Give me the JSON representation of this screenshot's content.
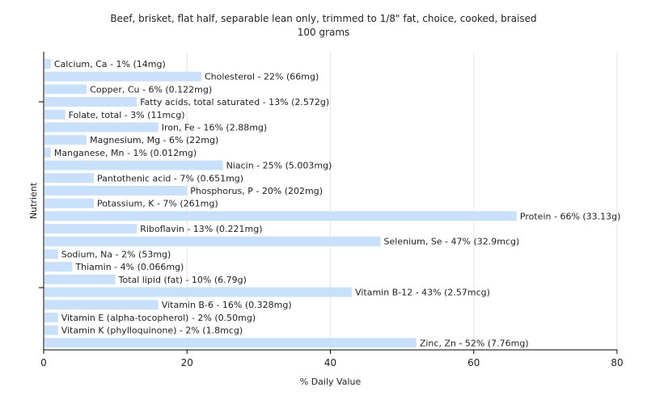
{
  "chart_data": {
    "type": "bar",
    "orientation": "horizontal",
    "title": "Beef, brisket, flat half, separable lean only, trimmed to 1/8\" fat, choice, cooked, braised",
    "subtitle": "100 grams",
    "xlabel": "% Daily Value",
    "ylabel": "Nutrient",
    "xlim": [
      0,
      80
    ],
    "xticks": [
      0,
      20,
      40,
      60,
      80
    ],
    "grid": true,
    "bar_color": "#c9e0fb",
    "categories": [
      "Calcium, Ca",
      "Cholesterol",
      "Copper, Cu",
      "Fatty acids, total saturated",
      "Folate, total",
      "Iron, Fe",
      "Magnesium, Mg",
      "Manganese, Mn",
      "Niacin",
      "Pantothenic acid",
      "Phosphorus, P",
      "Potassium, K",
      "Protein",
      "Riboflavin",
      "Selenium, Se",
      "Sodium, Na",
      "Thiamin",
      "Total lipid (fat)",
      "Vitamin B-12",
      "Vitamin B-6",
      "Vitamin E (alpha-tocopherol)",
      "Vitamin K (phylloquinone)",
      "Zinc, Zn"
    ],
    "values": [
      1,
      22,
      6,
      13,
      3,
      16,
      6,
      1,
      25,
      7,
      20,
      7,
      66,
      13,
      47,
      2,
      4,
      10,
      43,
      16,
      2,
      2,
      52
    ],
    "labels": [
      "Calcium, Ca - 1% (14mg)",
      "Cholesterol - 22% (66mg)",
      "Copper, Cu - 6% (0.122mg)",
      "Fatty acids, total saturated - 13% (2.572g)",
      "Folate, total - 3% (11mcg)",
      "Iron, Fe - 16% (2.88mg)",
      "Magnesium, Mg - 6% (22mg)",
      "Manganese, Mn - 1% (0.012mg)",
      "Niacin - 25% (5.003mg)",
      "Pantothenic acid - 7% (0.651mg)",
      "Phosphorus, P - 20% (202mg)",
      "Potassium, K - 7% (261mg)",
      "Protein - 66% (33.13g)",
      "Riboflavin - 13% (0.221mg)",
      "Selenium, Se - 47% (32.9mcg)",
      "Sodium, Na - 2% (53mg)",
      "Thiamin - 4% (0.066mg)",
      "Total lipid (fat) - 10% (6.79g)",
      "Vitamin B-12 - 43% (2.57mcg)",
      "Vitamin B-6 - 16% (0.328mg)",
      "Vitamin E (alpha-tocopherol) - 2% (0.50mg)",
      "Vitamin K (phylloquinone) - 2% (1.8mcg)",
      "Zinc, Zn - 52% (7.76mg)"
    ]
  }
}
